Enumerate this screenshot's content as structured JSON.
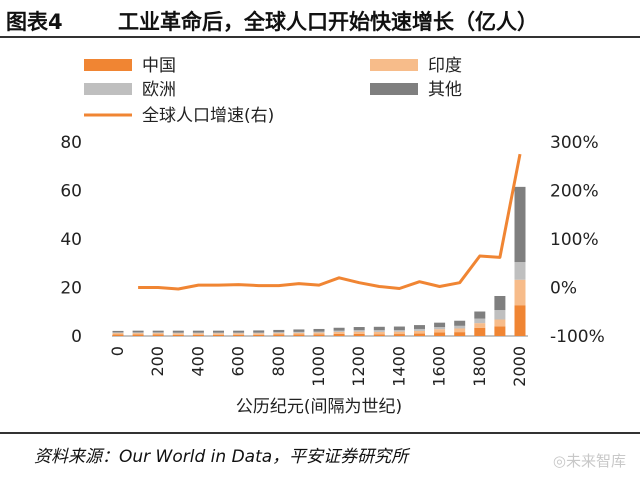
{
  "header": {
    "label": "图表4",
    "title": "工业革命后，全球人口开始快速增长（亿人）"
  },
  "source": {
    "text": "资料来源：Our World in Data，平安证券研究所",
    "watermark": "◎未来智库"
  },
  "chart_data": {
    "type": "bar",
    "stacked": true,
    "title": "",
    "xlabel": "公历纪元(间隔为世纪)",
    "ylabel": "",
    "x": [
      0,
      100,
      200,
      300,
      400,
      500,
      600,
      700,
      800,
      900,
      1000,
      1100,
      1200,
      1300,
      1400,
      1500,
      1600,
      1700,
      1800,
      1900,
      2000
    ],
    "x_tick_labels": [
      "0",
      "200",
      "400",
      "600",
      "800",
      "1000",
      "1200",
      "1400",
      "1600",
      "1800",
      "2000"
    ],
    "x_tick_values": [
      0,
      200,
      400,
      600,
      800,
      1000,
      1200,
      1400,
      1600,
      1800,
      2000
    ],
    "ylim": [
      0,
      80
    ],
    "y_ticks": [
      "0",
      "20",
      "40",
      "60",
      "80"
    ],
    "y2lim": [
      -100,
      300
    ],
    "y2_ticks": [
      "-100%",
      "0%",
      "100%",
      "200%",
      "300%"
    ],
    "series": [
      {
        "name": "中国",
        "color": "#F08533",
        "axis": "left",
        "values": [
          0.6,
          0.6,
          0.6,
          0.5,
          0.5,
          0.5,
          0.5,
          0.5,
          0.6,
          0.6,
          0.6,
          0.9,
          0.9,
          0.7,
          0.8,
          1.0,
          1.5,
          1.6,
          3.4,
          4.0,
          12.7
        ]
      },
      {
        "name": "印度",
        "color": "#F7BC8A",
        "axis": "left",
        "values": [
          0.6,
          0.6,
          0.6,
          0.6,
          0.6,
          0.6,
          0.6,
          0.6,
          0.6,
          0.7,
          0.8,
          0.8,
          0.9,
          1.0,
          1.0,
          1.1,
          1.3,
          1.5,
          1.9,
          2.8,
          10.5
        ]
      },
      {
        "name": "欧洲",
        "color": "#BFBFBF",
        "axis": "left",
        "values": [
          0.3,
          0.3,
          0.3,
          0.3,
          0.3,
          0.3,
          0.3,
          0.3,
          0.4,
          0.4,
          0.4,
          0.5,
          0.6,
          0.7,
          0.6,
          0.8,
          0.9,
          1.1,
          1.9,
          3.9,
          7.3
        ]
      },
      {
        "name": "其他",
        "color": "#7F7F7F",
        "axis": "left",
        "values": [
          0.6,
          0.7,
          0.7,
          0.8,
          0.8,
          0.8,
          0.8,
          0.9,
          0.9,
          1.0,
          1.1,
          1.2,
          1.3,
          1.4,
          1.5,
          1.6,
          1.8,
          2.1,
          2.9,
          5.8,
          31.0
        ]
      },
      {
        "name": "全球人口增速(右)",
        "color": "#F08533",
        "axis": "right",
        "type": "line",
        "values": [
          null,
          0,
          0,
          -3,
          5,
          5,
          6,
          4,
          4,
          8,
          5,
          20,
          10,
          2,
          -2,
          12,
          2,
          10,
          65,
          62,
          275
        ]
      }
    ],
    "legend_position": "top",
    "grid": false
  }
}
